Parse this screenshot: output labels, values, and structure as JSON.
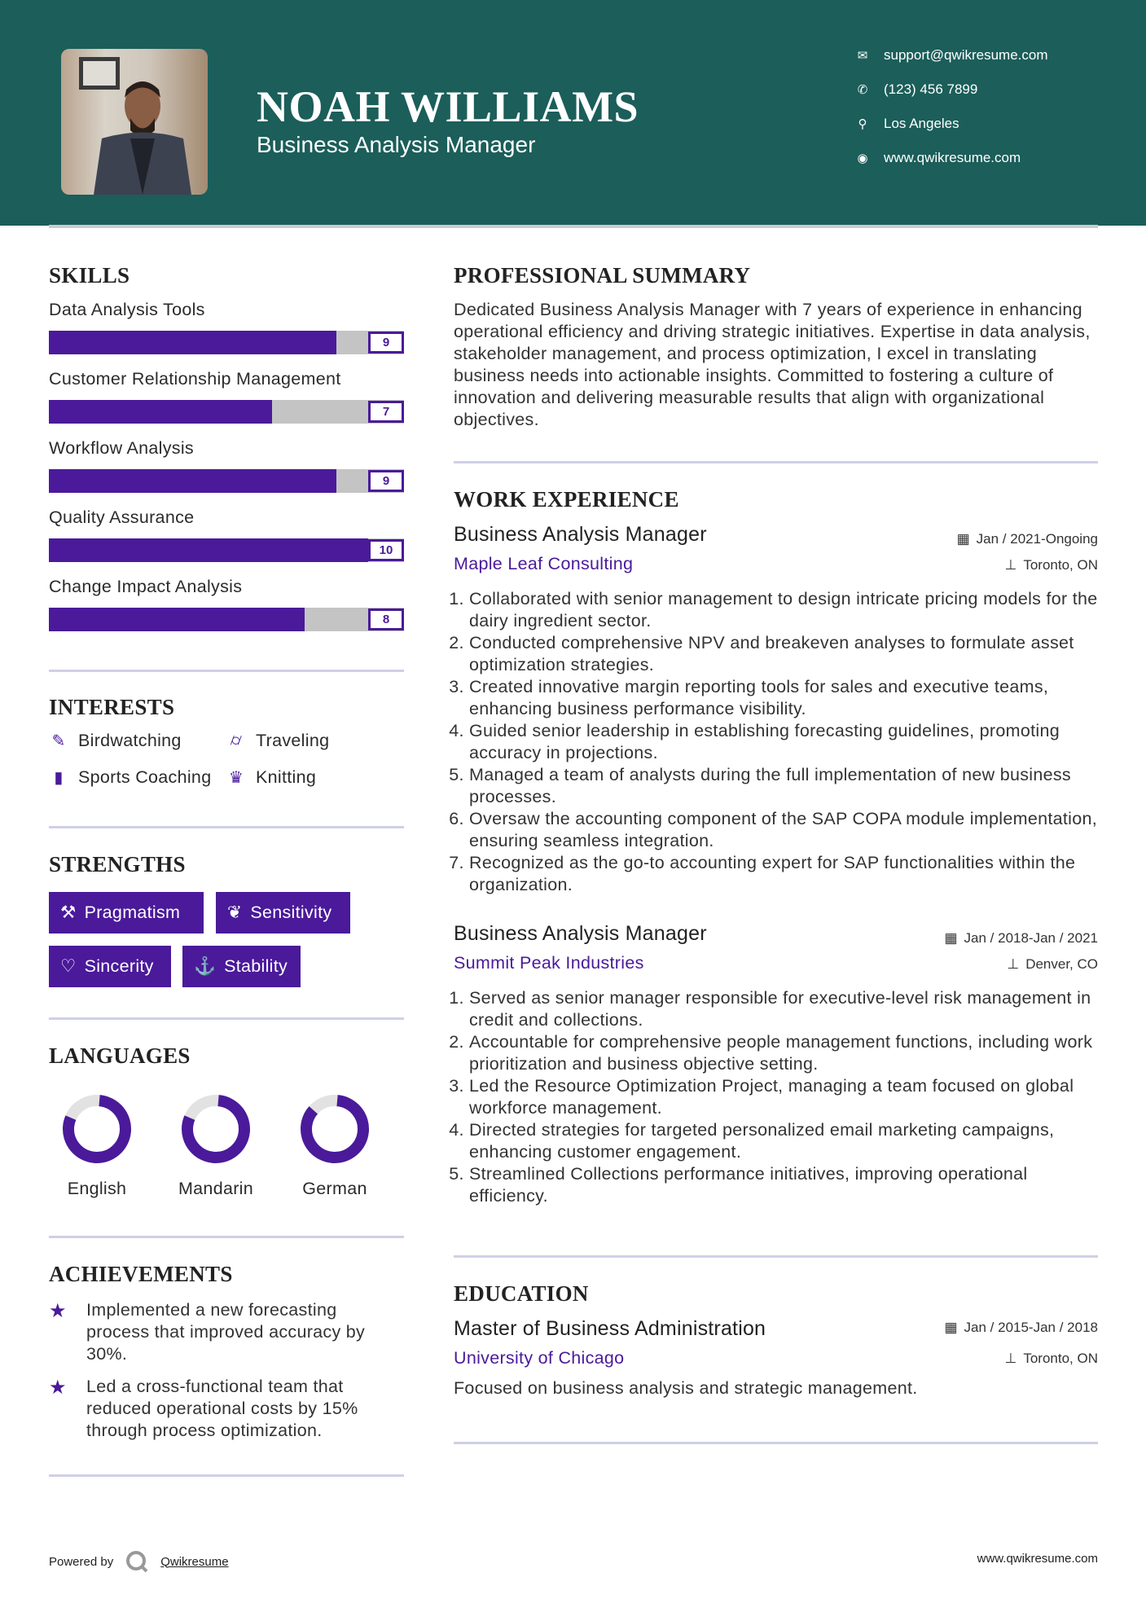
{
  "header": {
    "name": "NOAH WILLIAMS",
    "title": "Business Analysis Manager",
    "contacts": [
      {
        "icon": "envelope-icon",
        "text": "support@qwikresume.com"
      },
      {
        "icon": "phone-icon",
        "text": "(123) 456 7899"
      },
      {
        "icon": "map-marker-icon",
        "text": "Los Angeles"
      },
      {
        "icon": "globe-icon",
        "text": "www.qwikresume.com"
      }
    ]
  },
  "colors": {
    "header": "#1b5e5a",
    "accent": "#4a1a9a",
    "track": "#c4c4c4"
  },
  "skills": {
    "heading": "SKILLS",
    "items": [
      {
        "name": "Data Analysis Tools",
        "level": 9,
        "max": 10,
        "label": "9"
      },
      {
        "name": "Customer Relationship Management",
        "level": 7,
        "max": 10,
        "label": "7"
      },
      {
        "name": "Workflow Analysis",
        "level": 9,
        "max": 10,
        "label": "9"
      },
      {
        "name": "Quality Assurance",
        "level": 10,
        "max": 10,
        "label": "10"
      },
      {
        "name": "Change Impact Analysis",
        "level": 8,
        "max": 10,
        "label": "8"
      }
    ]
  },
  "interests": {
    "heading": "INTERESTS",
    "items": [
      {
        "icon": "edit-icon",
        "label": "Birdwatching"
      },
      {
        "icon": "binoculars-icon",
        "label": "Traveling"
      },
      {
        "icon": "briefcase-icon",
        "label": "Sports Coaching"
      },
      {
        "icon": "trophy-icon",
        "label": "Knitting"
      }
    ]
  },
  "strengths": {
    "heading": "STRENGTHS",
    "items": [
      {
        "icon": "gavel-icon",
        "label": "Pragmatism"
      },
      {
        "icon": "leaf-icon",
        "label": "Sensitivity"
      },
      {
        "icon": "heart-icon",
        "label": "Sincerity"
      },
      {
        "icon": "anchor-icon",
        "label": "Stability"
      }
    ]
  },
  "languages": {
    "heading": "LANGUAGES",
    "items": [
      {
        "name": "English",
        "proficiency_pct": 80
      },
      {
        "name": "Mandarin",
        "proficiency_pct": 80
      },
      {
        "name": "German",
        "proficiency_pct": 85
      }
    ]
  },
  "achievements": {
    "heading": "ACHIEVEMENTS",
    "items": [
      "Implemented a new forecasting process that improved accuracy by 30%.",
      "Led a cross-functional team that reduced operational costs by 15% through process optimization."
    ]
  },
  "summary": {
    "heading": "PROFESSIONAL SUMMARY",
    "text": "Dedicated Business Analysis Manager with 7 years of experience in enhancing operational efficiency and driving strategic initiatives. Expertise in data analysis, stakeholder management, and process optimization, I excel in translating business needs into actionable insights. Committed to fostering a culture of innovation and delivering measurable results that align with organizational objectives."
  },
  "experience": {
    "heading": "WORK EXPERIENCE",
    "jobs": [
      {
        "title": "Business Analysis Manager",
        "dates": "Jan / 2021-Ongoing",
        "company": "Maple Leaf Consulting",
        "location": "Toronto, ON",
        "bullets": [
          "Collaborated with senior management to design intricate pricing models for the dairy ingredient sector.",
          "Conducted comprehensive NPV and breakeven analyses to formulate asset optimization strategies.",
          "Created innovative margin reporting tools for sales and executive teams, enhancing business performance visibility.",
          "Guided senior leadership in establishing forecasting guidelines, promoting accuracy in projections.",
          "Managed a team of analysts during the full implementation of new business processes.",
          "Oversaw the accounting component of the SAP COPA module implementation, ensuring seamless integration.",
          "Recognized as the go-to accounting expert for SAP functionalities within the organization."
        ]
      },
      {
        "title": "Business Analysis Manager",
        "dates": "Jan / 2018-Jan / 2021",
        "company": "Summit Peak Industries",
        "location": "Denver, CO",
        "bullets": [
          "Served as senior manager responsible for executive-level risk management in credit and collections.",
          "Accountable for comprehensive people management functions, including work prioritization and business objective setting.",
          "Led the Resource Optimization Project, managing a team focused on global workforce management.",
          "Directed strategies for targeted personalized email marketing campaigns, enhancing customer engagement.",
          "Streamlined Collections performance initiatives, improving operational efficiency."
        ]
      }
    ]
  },
  "education": {
    "heading": "EDUCATION",
    "degree": "Master of Business Administration",
    "dates": "Jan / 2015-Jan / 2018",
    "school": "University of Chicago",
    "location": "Toronto, ON",
    "description": "Focused on business analysis and strategic management."
  },
  "footer": {
    "powered_by": "Powered by",
    "brand": "Qwikresume",
    "website": "www.qwikresume.com"
  }
}
